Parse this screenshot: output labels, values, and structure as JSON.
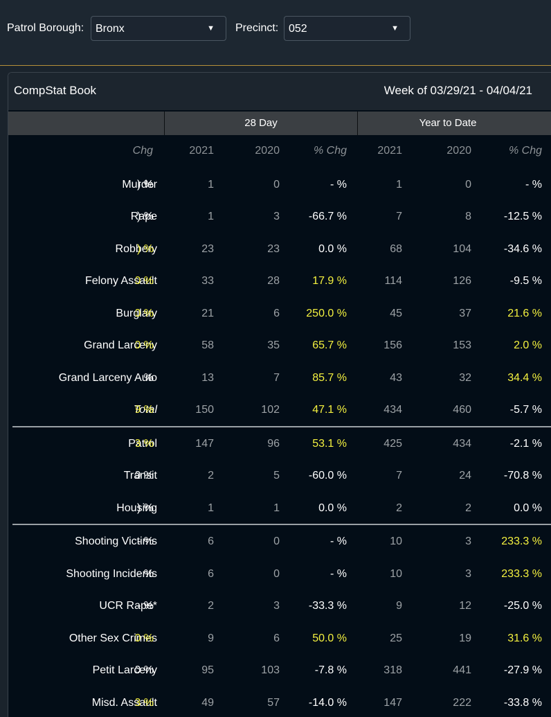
{
  "filters": {
    "borough_label": "Patrol Borough:",
    "borough_value": "Bronx",
    "precinct_label": "Precinct:",
    "precinct_value": "052"
  },
  "panel": {
    "title": "CompStat Book",
    "week": "Week of 03/29/21 - 04/04/21",
    "group_28day": "28 Day",
    "group_ytd": "Year to Date"
  },
  "columns": {
    "prev_pct_clipped": "Chg",
    "d28_2021": "2021",
    "d28_2020": "2020",
    "d28_pct": "% Chg",
    "ytd_2021": "2021",
    "ytd_2020": "2020",
    "ytd_pct": "% Chg"
  },
  "colors": {
    "highlight": "#f4f13f",
    "number": "#9da2a6",
    "text": "#ffffff",
    "divider": "#b58f3a"
  },
  "rows": [
    {
      "category": "Murder",
      "clip": ") %",
      "clip_hl": false,
      "d28_2021": "1",
      "d28_2020": "0",
      "d28_pct": "- %",
      "d28_hl": false,
      "ytd_2021": "1",
      "ytd_2020": "0",
      "ytd_pct": "- %",
      "ytd_hl": false
    },
    {
      "category": "Rape",
      "clip": ") %",
      "clip_hl": false,
      "d28_2021": "1",
      "d28_2020": "3",
      "d28_pct": "-66.7 %",
      "d28_hl": false,
      "ytd_2021": "7",
      "ytd_2020": "8",
      "ytd_pct": "-12.5 %",
      "ytd_hl": false
    },
    {
      "category": "Robbery",
      "clip": ") %",
      "clip_hl": true,
      "d28_2021": "23",
      "d28_2020": "23",
      "d28_pct": "0.0 %",
      "d28_hl": false,
      "ytd_2021": "68",
      "ytd_2020": "104",
      "ytd_pct": "-34.6 %",
      "ytd_hl": false
    },
    {
      "category": "Felony Assault",
      "clip": ".0 %",
      "clip_hl": true,
      "d28_2021": "33",
      "d28_2020": "28",
      "d28_pct": "17.9 %",
      "d28_hl": true,
      "ytd_2021": "114",
      "ytd_2020": "126",
      "ytd_pct": "-9.5 %",
      "ytd_hl": false
    },
    {
      "category": "Burglary",
      "clip": ".0 %",
      "clip_hl": true,
      "d28_2021": "21",
      "d28_2020": "6",
      "d28_pct": "250.0 %",
      "d28_hl": true,
      "ytd_2021": "45",
      "ytd_2020": "37",
      "ytd_pct": "21.6 %",
      "ytd_hl": true
    },
    {
      "category": "Grand Larceny",
      "clip": ".0 %",
      "clip_hl": true,
      "d28_2021": "58",
      "d28_2020": "35",
      "d28_pct": "65.7 %",
      "d28_hl": true,
      "ytd_2021": "156",
      "ytd_2020": "153",
      "ytd_pct": "2.0 %",
      "ytd_hl": true
    },
    {
      "category": "Grand Larceny Auto",
      "clip": "- %",
      "clip_hl": false,
      "d28_2021": "13",
      "d28_2020": "7",
      "d28_pct": "85.7 %",
      "d28_hl": true,
      "ytd_2021": "43",
      "ytd_2020": "32",
      "ytd_pct": "34.4 %",
      "ytd_hl": true
    },
    {
      "category": "Total",
      "clip": ".9 %",
      "clip_hl": true,
      "d28_2021": "150",
      "d28_2020": "102",
      "d28_pct": "47.1 %",
      "d28_hl": true,
      "ytd_2021": "434",
      "ytd_2020": "460",
      "ytd_pct": "-5.7 %",
      "ytd_hl": false
    },
    {
      "category": "Patrol",
      "clip": ".3 %",
      "clip_hl": true,
      "d28_2021": "147",
      "d28_2020": "96",
      "d28_pct": "53.1 %",
      "d28_hl": true,
      "ytd_2021": "425",
      "ytd_2020": "434",
      "ytd_pct": "-2.1 %",
      "ytd_hl": false
    },
    {
      "category": "Transit",
      "clip": ").0 %",
      "clip_hl": false,
      "d28_2021": "2",
      "d28_2020": "5",
      "d28_pct": "-60.0 %",
      "d28_hl": false,
      "ytd_2021": "7",
      "ytd_2020": "24",
      "ytd_pct": "-70.8 %",
      "ytd_hl": false
    },
    {
      "category": "Housing",
      "clip": ") %",
      "clip_hl": false,
      "d28_2021": "1",
      "d28_2020": "1",
      "d28_pct": "0.0 %",
      "d28_hl": false,
      "ytd_2021": "2",
      "ytd_2020": "2",
      "ytd_pct": "0.0 %",
      "ytd_hl": false
    },
    {
      "category": "Shooting Victims",
      "clip": "- %",
      "clip_hl": false,
      "d28_2021": "6",
      "d28_2020": "0",
      "d28_pct": "- %",
      "d28_hl": false,
      "ytd_2021": "10",
      "ytd_2020": "3",
      "ytd_pct": "233.3 %",
      "ytd_hl": true
    },
    {
      "category": "Shooting Incidents",
      "clip": "- %",
      "clip_hl": false,
      "d28_2021": "6",
      "d28_2020": "0",
      "d28_pct": "- %",
      "d28_hl": false,
      "ytd_2021": "10",
      "ytd_2020": "3",
      "ytd_pct": "233.3 %",
      "ytd_hl": true
    },
    {
      "category": "UCR Rape*",
      "clip": "- %",
      "clip_hl": false,
      "d28_2021": "2",
      "d28_2020": "3",
      "d28_pct": "-33.3 %",
      "d28_hl": false,
      "ytd_2021": "9",
      "ytd_2020": "12",
      "ytd_pct": "-25.0 %",
      "ytd_hl": false
    },
    {
      "category": "Other Sex Crimes",
      "clip": ".0 %",
      "clip_hl": true,
      "d28_2021": "9",
      "d28_2020": "6",
      "d28_pct": "50.0 %",
      "d28_hl": true,
      "ytd_2021": "25",
      "ytd_2020": "19",
      "ytd_pct": "31.6 %",
      "ytd_hl": true
    },
    {
      "category": "Petit Larceny",
      "clip": "0 %",
      "clip_hl": false,
      "d28_2021": "95",
      "d28_2020": "103",
      "d28_pct": "-7.8 %",
      "d28_hl": false,
      "ytd_2021": "318",
      "ytd_2020": "441",
      "ytd_pct": "-27.9 %",
      "ytd_hl": false
    },
    {
      "category": "Misd. Assault",
      "clip": "3 %",
      "clip_hl": true,
      "d28_2021": "49",
      "d28_2020": "57",
      "d28_pct": "-14.0 %",
      "d28_hl": false,
      "ytd_2021": "147",
      "ytd_2020": "222",
      "ytd_pct": "-33.8 %",
      "ytd_hl": false
    }
  ]
}
